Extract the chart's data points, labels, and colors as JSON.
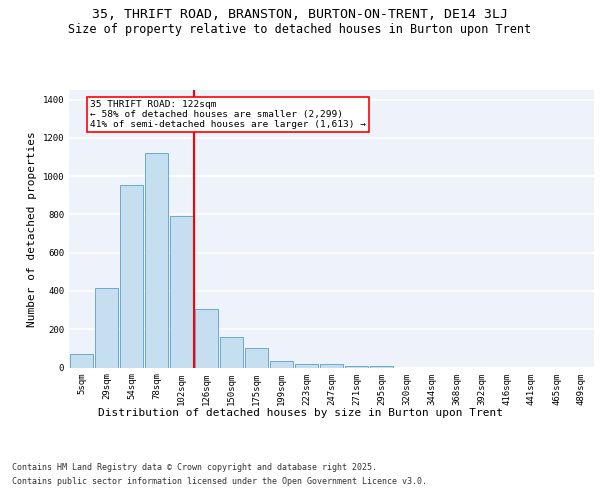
{
  "title": "35, THRIFT ROAD, BRANSTON, BURTON-ON-TRENT, DE14 3LJ",
  "subtitle": "Size of property relative to detached houses in Burton upon Trent",
  "xlabel": "Distribution of detached houses by size in Burton upon Trent",
  "ylabel": "Number of detached properties",
  "categories": [
    "5sqm",
    "29sqm",
    "54sqm",
    "78sqm",
    "102sqm",
    "126sqm",
    "150sqm",
    "175sqm",
    "199sqm",
    "223sqm",
    "247sqm",
    "271sqm",
    "295sqm",
    "320sqm",
    "344sqm",
    "368sqm",
    "392sqm",
    "416sqm",
    "441sqm",
    "465sqm",
    "489sqm"
  ],
  "values": [
    68,
    415,
    955,
    1120,
    790,
    305,
    160,
    100,
    35,
    20,
    18,
    10,
    7,
    0,
    0,
    0,
    0,
    0,
    0,
    0,
    0
  ],
  "bar_color": "#c5dff0",
  "bar_edge_color": "#5a9ec8",
  "background_color": "#eef2fb",
  "grid_color": "#ffffff",
  "vline_x": 4.5,
  "vline_color": "red",
  "annotation_text": "35 THRIFT ROAD: 122sqm\n← 58% of detached houses are smaller (2,299)\n41% of semi-detached houses are larger (1,613) →",
  "annotation_box_color": "red",
  "ylim": [
    0,
    1450
  ],
  "yticks": [
    0,
    200,
    400,
    600,
    800,
    1000,
    1200,
    1400
  ],
  "footer_line1": "Contains HM Land Registry data © Crown copyright and database right 2025.",
  "footer_line2": "Contains public sector information licensed under the Open Government Licence v3.0.",
  "title_fontsize": 9.5,
  "subtitle_fontsize": 8.5,
  "tick_fontsize": 6.5,
  "ylabel_fontsize": 8,
  "xlabel_fontsize": 8,
  "annotation_fontsize": 6.8,
  "footer_fontsize": 6
}
